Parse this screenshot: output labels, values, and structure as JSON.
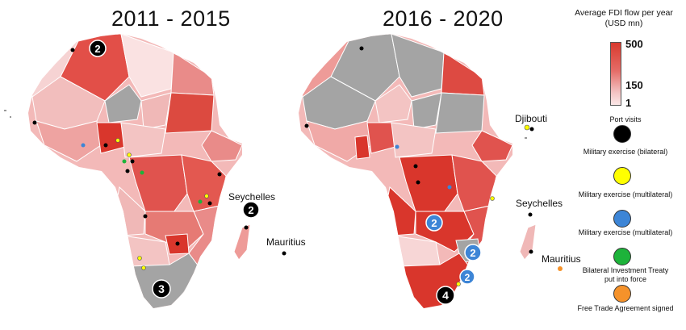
{
  "maps": [
    {
      "title": "2011 - 2015"
    },
    {
      "title": "2016 - 2020"
    }
  ],
  "labels": {
    "seychelles_1": "Seychelles",
    "mauritius_1": "Mauritius",
    "djibouti_2": "Djibouti",
    "seychelles_2": "Seychelles",
    "mauritius_2": "Mauritius"
  },
  "badges": {
    "map1_north": "2",
    "map1_seychelles": "2",
    "map1_south": "3",
    "map2_angola": "2",
    "map2_mozambique": "2",
    "map2_eswatini": "2",
    "map2_south": "4"
  },
  "legend": {
    "title": "Average FDI flow per year (USD mn)",
    "scale_max": "500",
    "scale_mid": "150",
    "scale_min": "1",
    "items": [
      {
        "label": "Port visits",
        "color": "#000000",
        "icon": "black-circle"
      },
      {
        "label": "Military exercise (bilateral)",
        "color": "#ffff00",
        "icon": "yellow-circle"
      },
      {
        "label": "Military exercise (multilateral)",
        "color": "#3d85d6",
        "icon": "blue-circle"
      },
      {
        "label": "Military exercise (multilateral)",
        "color": "#1db33a",
        "icon": "green-circle"
      },
      {
        "label": "Bilateral Investment Treaty put into force",
        "color": "#f5922a",
        "icon": "orange-circle"
      },
      {
        "label": "Free Trade Agreement signed",
        "color": "",
        "icon": ""
      }
    ]
  },
  "colors": {
    "dark_red": "#d93a2e",
    "mid_red": "#e2615c",
    "light_red": "#ee9b98",
    "pale": "#f7cfcf",
    "very_pale": "#fbe4e4",
    "grey": "#a4a4a4"
  }
}
